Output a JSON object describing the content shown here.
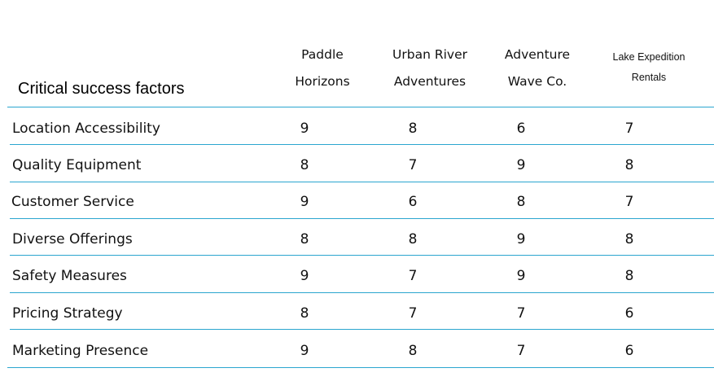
{
  "table": {
    "title": "Critical success factors",
    "columns": [
      {
        "line1": "Paddle",
        "line2": "Horizons"
      },
      {
        "line1": "Urban River",
        "line2": "Adventures"
      },
      {
        "line1": "Adventure",
        "line2": "Wave Co."
      },
      {
        "line1": "Lake Expedition",
        "line2": "Rentals"
      }
    ],
    "rows": [
      {
        "label": "Location Accessibility",
        "values": [
          "9",
          "8",
          "6",
          "7"
        ]
      },
      {
        "label": "Quality Equipment",
        "values": [
          "8",
          "7",
          "9",
          "8"
        ]
      },
      {
        "label": "Customer Service",
        "values": [
          "9",
          "6",
          "8",
          "7"
        ]
      },
      {
        "label": "Diverse Offerings",
        "values": [
          "8",
          "8",
          "9",
          "8"
        ]
      },
      {
        "label": "Safety Measures",
        "values": [
          "9",
          "7",
          "9",
          "8"
        ]
      },
      {
        "label": "Pricing Strategy",
        "values": [
          "8",
          "7",
          "7",
          "6"
        ]
      },
      {
        "label": "Marketing Presence",
        "values": [
          "9",
          "8",
          "7",
          "6"
        ]
      }
    ],
    "rule_color": "#2ba6cf"
  }
}
